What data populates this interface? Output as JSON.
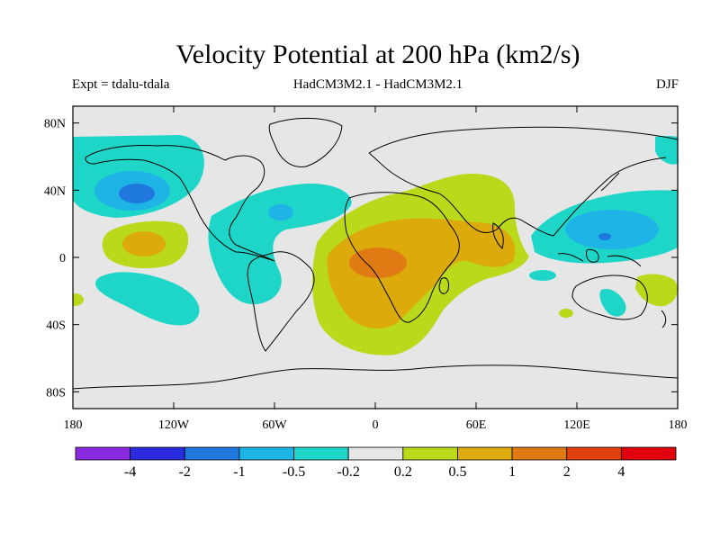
{
  "title": "Velocity Potential at 200 hPa (km2/s)",
  "expt_label": "Expt = tdalu-tdala",
  "model_label": "HadCM3M2.1 - HadCM3M2.1",
  "season_label": "DJF",
  "map": {
    "lon_range": [
      -180,
      180
    ],
    "lat_range": [
      -90,
      90
    ],
    "x_ticks": [
      {
        "lon": -180,
        "label": "180"
      },
      {
        "lon": -120,
        "label": "120W"
      },
      {
        "lon": -60,
        "label": "60W"
      },
      {
        "lon": 0,
        "label": "0"
      },
      {
        "lon": 60,
        "label": "60E"
      },
      {
        "lon": 120,
        "label": "120E"
      },
      {
        "lon": 180,
        "label": "180"
      }
    ],
    "y_ticks": [
      {
        "lat": 80,
        "label": "80N"
      },
      {
        "lat": 40,
        "label": "40N"
      },
      {
        "lat": 0,
        "label": "0"
      },
      {
        "lat": -40,
        "label": "40S"
      },
      {
        "lat": -80,
        "label": "80S"
      }
    ],
    "background_color": "#e6e6e6"
  },
  "colorbar": {
    "colors": [
      "#8a2be2",
      "#2a2adf",
      "#1e78dd",
      "#1fb4e6",
      "#1ed6c8",
      "#e6e6e6",
      "#b9d91a",
      "#dcaa0a",
      "#e07a12",
      "#e0400e",
      "#e0000e"
    ],
    "labels": [
      "-4",
      "-2",
      "-1",
      "-0.5",
      "-0.2",
      "0.2",
      "0.5",
      "1",
      "2",
      "4"
    ]
  }
}
